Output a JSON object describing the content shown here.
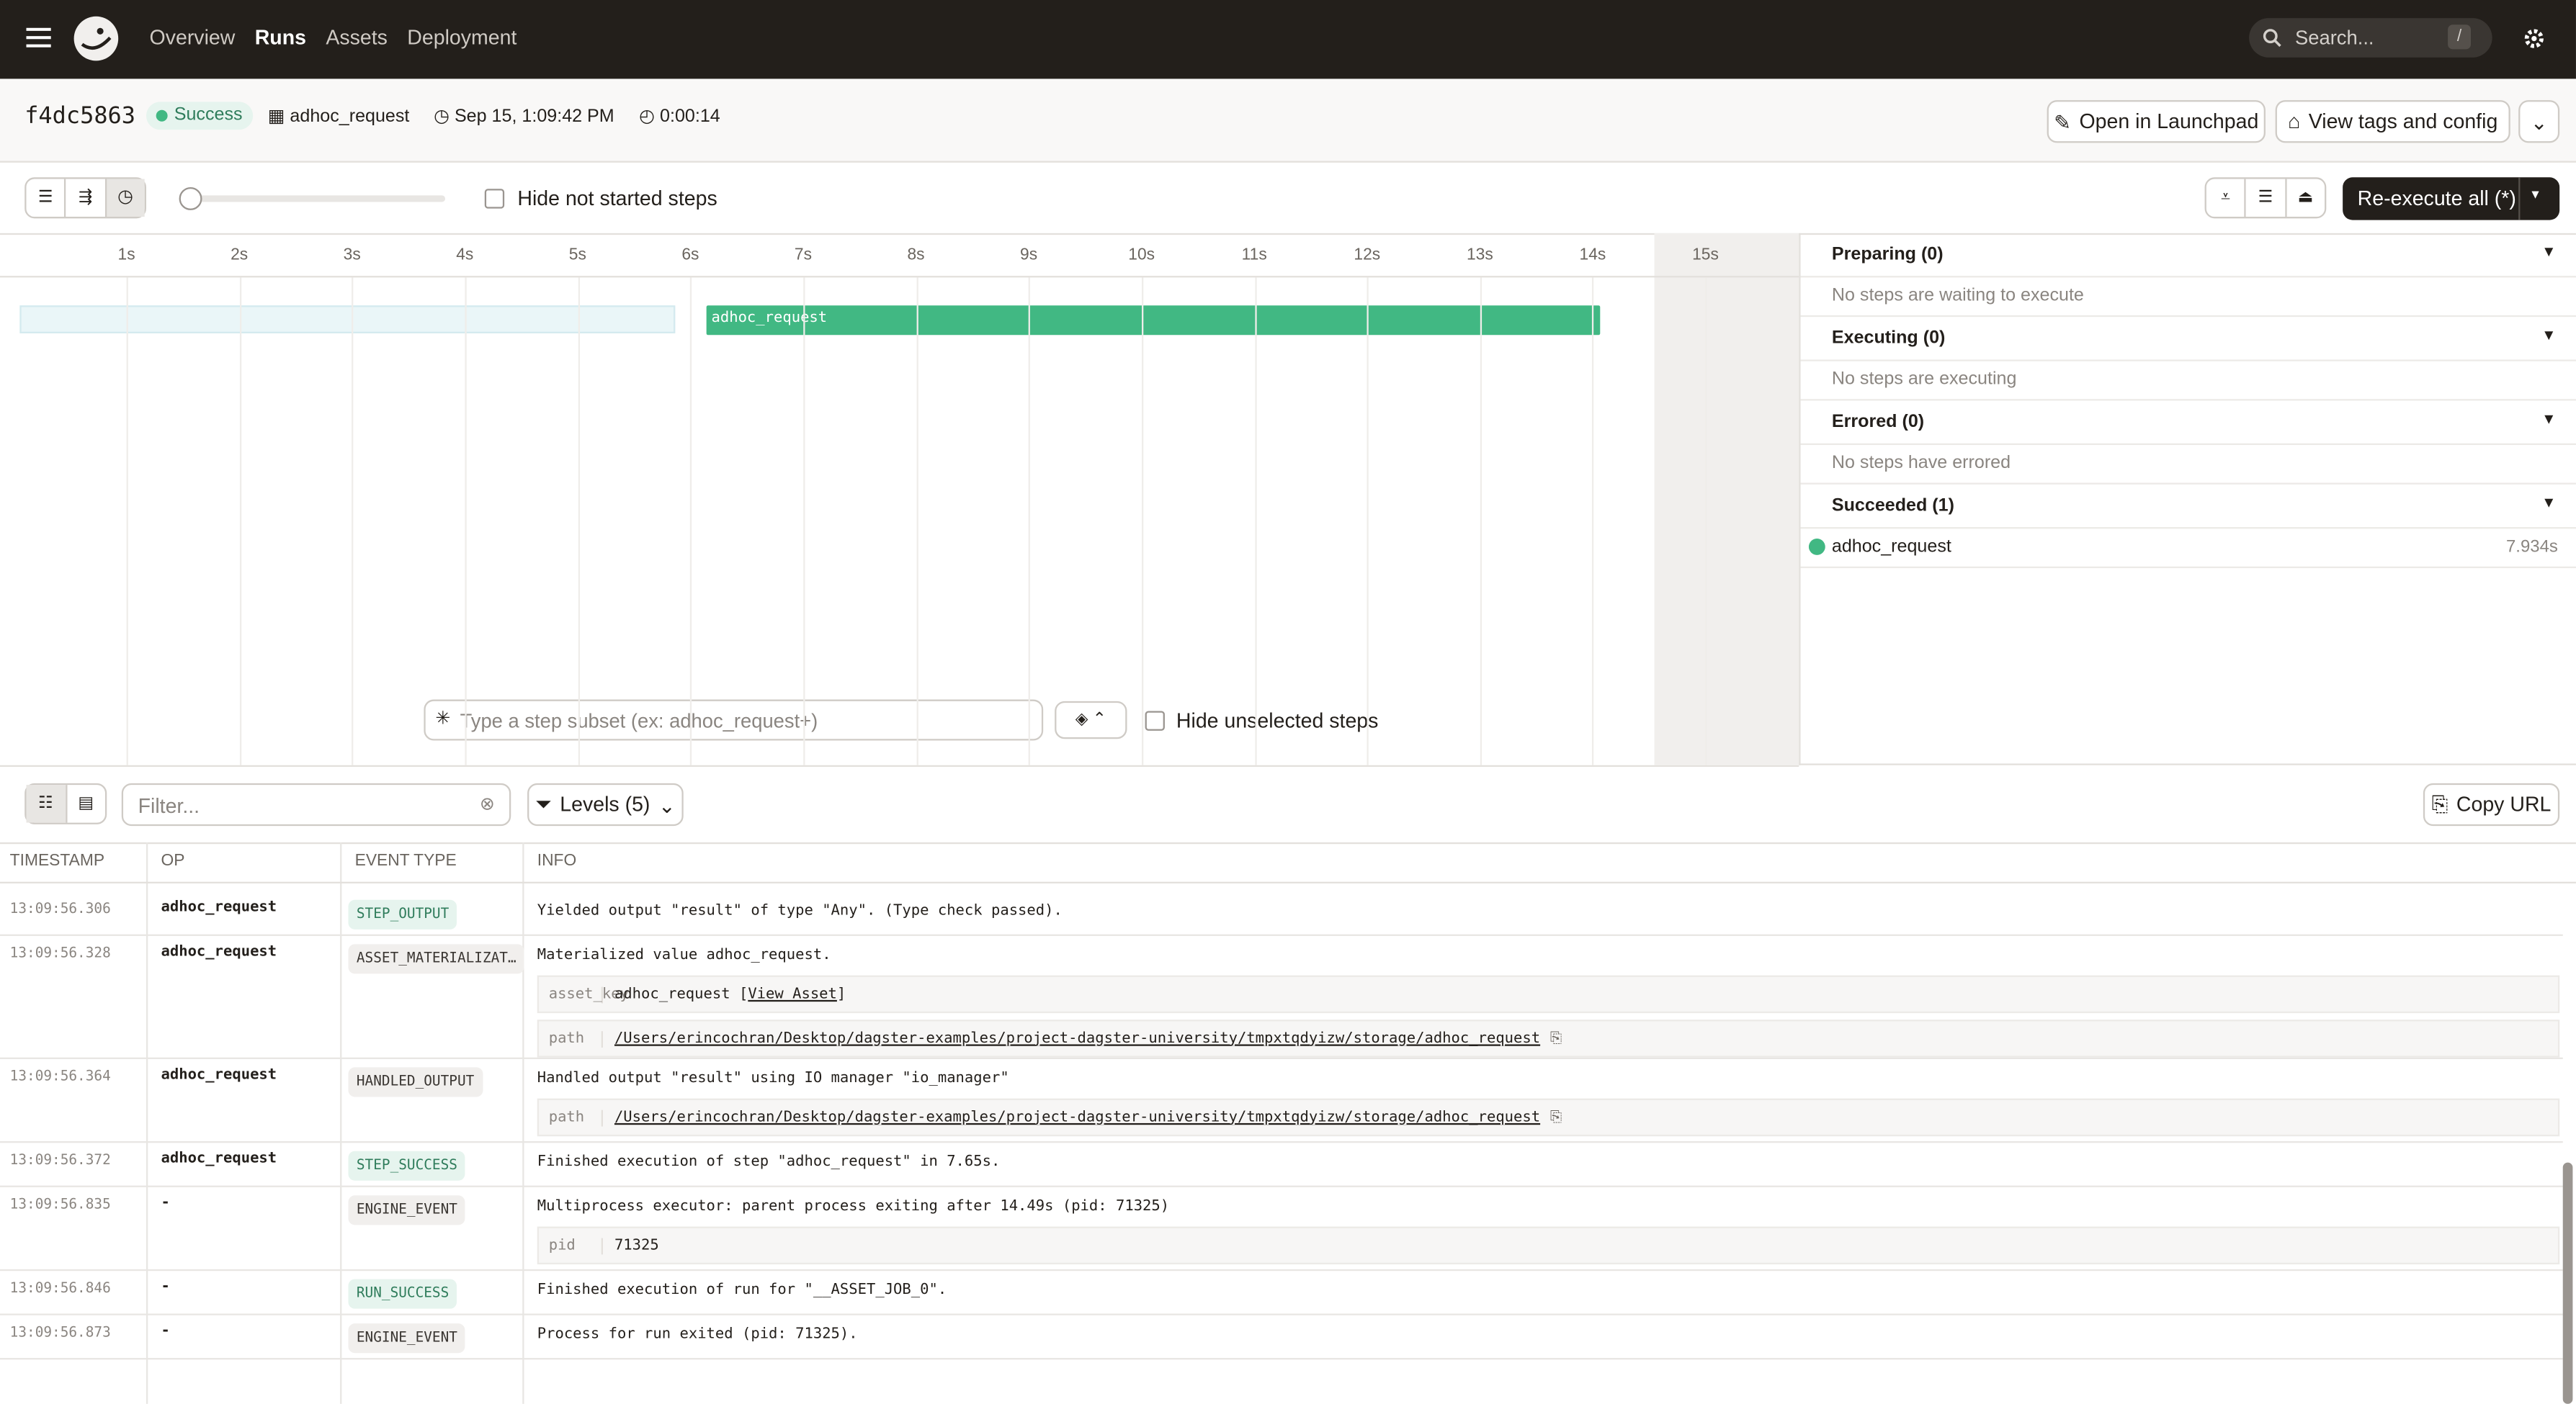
{
  "nav": {
    "items": [
      "Overview",
      "Runs",
      "Assets",
      "Deployment"
    ],
    "search": "Search...",
    "shortcut": "/"
  },
  "run": {
    "id": "f4dc5863",
    "status": "Success",
    "job": "adhoc_request",
    "started": "Sep 15, 1:09:42 PM",
    "duration": "0:00:14",
    "open_launchpad": "Open in Launchpad",
    "view_tags": "View tags and config"
  },
  "toolbar": {
    "hide_not_started": "Hide not started steps",
    "reexecute": "Re-execute all (*)"
  },
  "timeline": {
    "ticks": [
      "1s",
      "2s",
      "3s",
      "4s",
      "5s",
      "6s",
      "7s",
      "8s",
      "9s",
      "10s",
      "11s",
      "12s",
      "13s",
      "14s",
      "15s"
    ],
    "step": "adhoc_request",
    "subset_placeholder": "Type a step subset (ex: adhoc_request+)",
    "hide_unselected": "Hide unselected steps"
  },
  "sidebar": {
    "sections": [
      {
        "title": "Preparing (0)",
        "empty": "No steps are waiting to execute"
      },
      {
        "title": "Executing (0)",
        "empty": "No steps are executing"
      },
      {
        "title": "Errored (0)",
        "empty": "No steps have errored"
      },
      {
        "title": "Succeeded (1)",
        "step": "adhoc_request",
        "time": "7.934s"
      }
    ]
  },
  "logs": {
    "filter_placeholder": "Filter...",
    "levels": "Levels (5)",
    "copy_url": "Copy URL",
    "headers": [
      "TIMESTAMP",
      "OP",
      "EVENT TYPE",
      "INFO"
    ],
    "rows": [
      {
        "time": "13:09:56.306",
        "op": "adhoc_request",
        "event": "STEP_OUTPUT",
        "success": true,
        "info": "Yielded output \"result\" of type \"Any\". (Type check passed).",
        "details": []
      },
      {
        "time": "13:09:56.328",
        "op": "adhoc_request",
        "event": "ASSET_MATERIALIZAT…",
        "success": false,
        "info": "Materialized value adhoc_request.",
        "details": [
          {
            "key": "asset_key",
            "value": "adhoc_request [",
            "link": "View Asset",
            "suffix": "]"
          },
          {
            "key": "path",
            "link": "/Users/erincochran/Desktop/dagster-examples/project-dagster-university/tmpxtqdyizw/storage/adhoc_request"
          }
        ]
      },
      {
        "time": "13:09:56.364",
        "op": "adhoc_request",
        "event": "HANDLED_OUTPUT",
        "success": false,
        "info": "Handled output \"result\" using IO manager \"io_manager\"",
        "details": [
          {
            "key": "path",
            "link": "/Users/erincochran/Desktop/dagster-examples/project-dagster-university/tmpxtqdyizw/storage/adhoc_request"
          }
        ]
      },
      {
        "time": "13:09:56.372",
        "op": "adhoc_request",
        "event": "STEP_SUCCESS",
        "success": true,
        "info": "Finished execution of step \"adhoc_request\" in 7.65s.",
        "details": []
      },
      {
        "time": "13:09:56.835",
        "op": "-",
        "event": "ENGINE_EVENT",
        "success": false,
        "info": "Multiprocess executor: parent process exiting after 14.49s (pid: 71325)",
        "details": [
          {
            "key": "pid",
            "value": "71325"
          }
        ]
      },
      {
        "time": "13:09:56.846",
        "op": "-",
        "event": "RUN_SUCCESS",
        "success": true,
        "info": "Finished execution of run for \"__ASSET_JOB_0\".",
        "details": []
      },
      {
        "time": "13:09:56.873",
        "op": "-",
        "event": "ENGINE_EVENT",
        "success": false,
        "info": "Process for run exited (pid: 71325).",
        "details": []
      }
    ]
  }
}
